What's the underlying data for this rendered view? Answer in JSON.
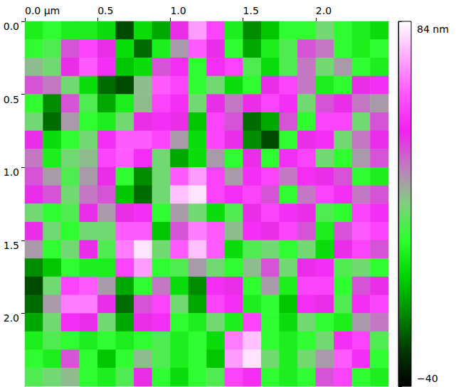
{
  "chart_data": {
    "type": "heatmap",
    "xlim": [
      0,
      2.5
    ],
    "ylim": [
      0,
      2.5
    ],
    "xticks": [
      {
        "value": 0,
        "label": "0.0 µm"
      },
      0.5,
      {
        "value": 1,
        "label": "1.0"
      },
      1.5,
      {
        "value": 2,
        "label": "2.0"
      }
    ],
    "yticks": [
      {
        "value": 0,
        "label": "0.0"
      },
      0.5,
      {
        "value": 1,
        "label": "1.0"
      },
      1.5,
      {
        "value": 2,
        "label": "2.0"
      }
    ],
    "grid": false,
    "color_range": [
      -40,
      84
    ],
    "color_ticks": [
      {
        "value": 84,
        "label": "84 nm"
      },
      {
        "value": -40,
        "label": "−40"
      }
    ],
    "cells": [
      [
        5,
        10,
        5,
        5,
        0,
        -25,
        0,
        -10,
        45,
        70,
        55,
        5,
        -15,
        -5,
        10,
        10,
        20,
        10,
        5,
        0
      ],
      [
        10,
        15,
        40,
        55,
        45,
        0,
        -20,
        5,
        30,
        60,
        45,
        10,
        -10,
        5,
        15,
        40,
        35,
        10,
        5,
        10
      ],
      [
        25,
        20,
        45,
        60,
        50,
        -5,
        0,
        40,
        50,
        10,
        50,
        55,
        15,
        0,
        15,
        35,
        20,
        30,
        10,
        5
      ],
      [
        40,
        35,
        20,
        0,
        -20,
        -25,
        25,
        60,
        55,
        10,
        20,
        0,
        10,
        45,
        55,
        35,
        5,
        10,
        45,
        50
      ],
      [
        10,
        -15,
        40,
        15,
        -10,
        5,
        25,
        55,
        50,
        20,
        45,
        35,
        45,
        55,
        50,
        20,
        40,
        45,
        35,
        30
      ],
      [
        20,
        -20,
        30,
        10,
        5,
        20,
        45,
        50,
        45,
        -5,
        55,
        40,
        -20,
        -10,
        40,
        10,
        55,
        55,
        20,
        40
      ],
      [
        45,
        0,
        10,
        20,
        50,
        60,
        60,
        55,
        30,
        0,
        55,
        45,
        -15,
        -25,
        10,
        45,
        50,
        20,
        35,
        45
      ],
      [
        35,
        5,
        20,
        25,
        55,
        60,
        50,
        20,
        -10,
        0,
        30,
        10,
        45,
        10,
        50,
        55,
        20,
        10,
        30,
        40
      ],
      [
        40,
        30,
        15,
        30,
        45,
        10,
        -15,
        20,
        60,
        70,
        55,
        30,
        50,
        55,
        35,
        50,
        45,
        40,
        10,
        5
      ],
      [
        45,
        40,
        20,
        35,
        40,
        -5,
        -20,
        20,
        75,
        80,
        55,
        50,
        55,
        40,
        10,
        35,
        55,
        50,
        35,
        40
      ],
      [
        20,
        10,
        15,
        45,
        30,
        45,
        50,
        10,
        30,
        20,
        0,
        15,
        45,
        55,
        50,
        45,
        15,
        10,
        55,
        50
      ],
      [
        45,
        20,
        10,
        20,
        20,
        60,
        60,
        -5,
        40,
        65,
        60,
        25,
        50,
        45,
        55,
        40,
        5,
        40,
        60,
        55
      ],
      [
        30,
        10,
        20,
        45,
        15,
        65,
        80,
        20,
        60,
        75,
        60,
        0,
        15,
        20,
        10,
        20,
        0,
        45,
        55,
        40
      ],
      [
        -15,
        -5,
        10,
        5,
        5,
        55,
        70,
        10,
        15,
        30,
        20,
        10,
        25,
        40,
        20,
        45,
        50,
        15,
        20,
        10
      ],
      [
        -25,
        20,
        55,
        60,
        30,
        -10,
        10,
        35,
        0,
        -15,
        50,
        45,
        10,
        30,
        5,
        55,
        55,
        10,
        40,
        45
      ],
      [
        -20,
        30,
        65,
        65,
        45,
        -20,
        40,
        55,
        20,
        -10,
        55,
        50,
        5,
        10,
        -5,
        50,
        45,
        15,
        50,
        55
      ],
      [
        -10,
        20,
        50,
        45,
        20,
        -10,
        45,
        50,
        10,
        5,
        20,
        5,
        55,
        10,
        0,
        20,
        10,
        5,
        30,
        35
      ],
      [
        5,
        15,
        10,
        5,
        10,
        5,
        10,
        15,
        5,
        10,
        0,
        65,
        75,
        10,
        5,
        10,
        20,
        50,
        55,
        15
      ],
      [
        10,
        5,
        40,
        10,
        -5,
        10,
        25,
        15,
        5,
        10,
        -5,
        70,
        80,
        20,
        5,
        20,
        30,
        60,
        50,
        10
      ],
      [
        15,
        20,
        25,
        10,
        5,
        15,
        45,
        10,
        0,
        10,
        15,
        55,
        50,
        10,
        5,
        10,
        40,
        55,
        10,
        5
      ]
    ]
  }
}
